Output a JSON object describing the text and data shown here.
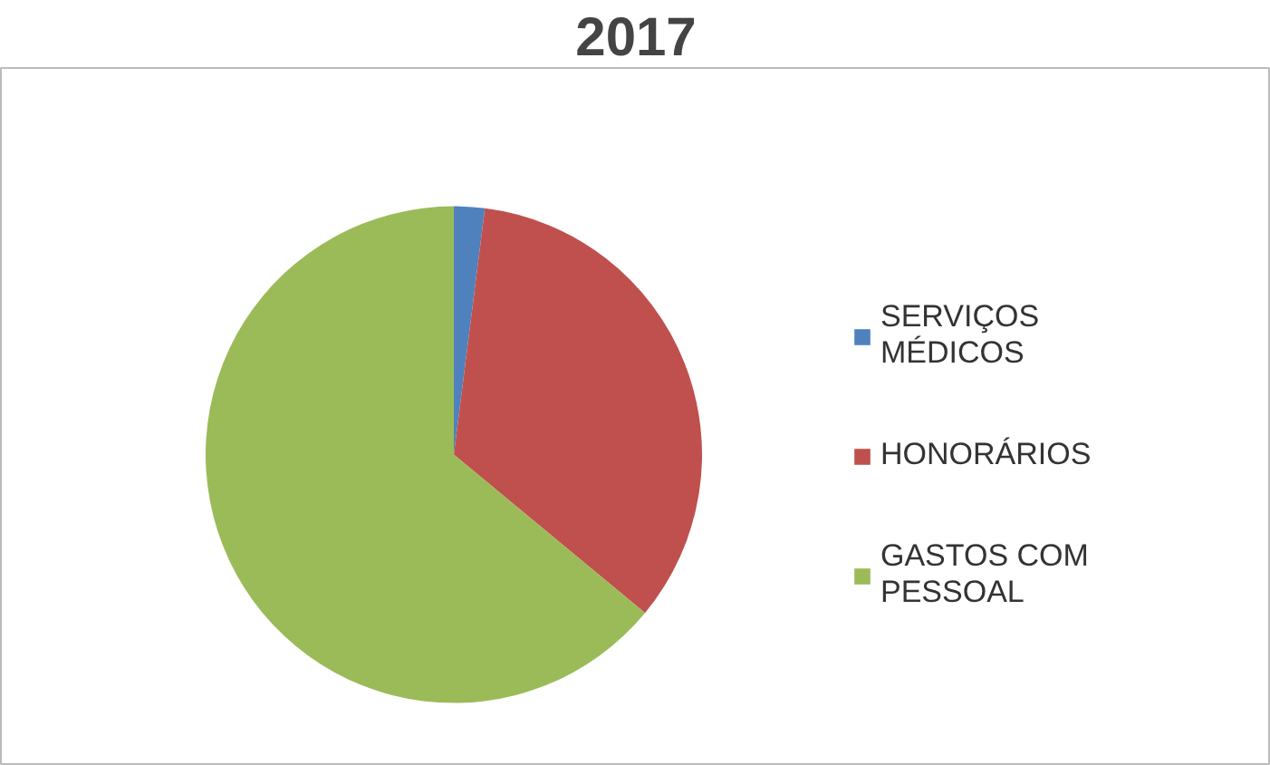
{
  "chart_data": {
    "type": "pie",
    "title": "2017",
    "categories": [
      "SERVIÇOS MÉDICOS",
      "HONORÁRIOS",
      "GASTOS COM PESSOAL"
    ],
    "values": [
      2,
      34,
      64
    ],
    "colors": [
      "#4f81bd",
      "#c0504d",
      "#9bbb59"
    ],
    "legend": "right"
  }
}
